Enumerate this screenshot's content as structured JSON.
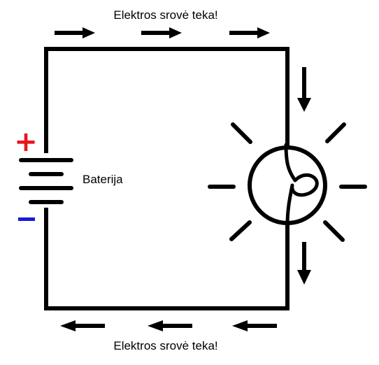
{
  "labels": {
    "current_top": "Elektros srovė teka!",
    "current_bottom": "Elektros srovė teka!",
    "battery": "Baterija"
  },
  "terminals": {
    "positive": "+",
    "negative": "−"
  },
  "icons": {
    "arrow": "arrow-icon",
    "bulb": "light-bulb-icon",
    "battery": "battery-icon"
  },
  "colors": {
    "wire": "#000000",
    "positive": "#e8161b",
    "negative": "#1a1adb"
  }
}
